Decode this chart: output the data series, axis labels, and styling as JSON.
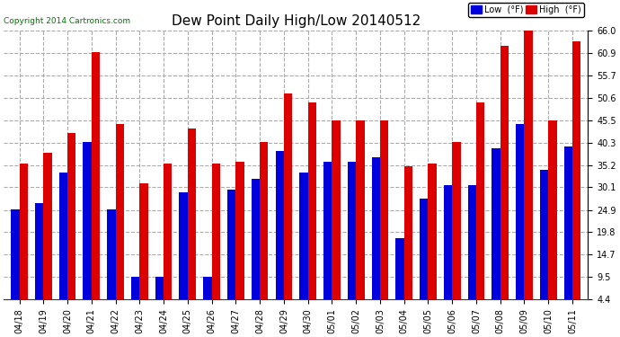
{
  "title": "Dew Point Daily High/Low 20140512",
  "copyright": "Copyright 2014 Cartronics.com",
  "categories": [
    "04/18",
    "04/19",
    "04/20",
    "04/21",
    "04/22",
    "04/23",
    "04/24",
    "04/25",
    "04/26",
    "04/27",
    "04/28",
    "04/29",
    "04/30",
    "05/01",
    "05/02",
    "05/03",
    "05/04",
    "05/05",
    "05/06",
    "05/07",
    "05/08",
    "05/09",
    "05/10",
    "05/11"
  ],
  "low_values": [
    25.0,
    26.5,
    33.5,
    40.5,
    25.0,
    9.5,
    9.5,
    29.0,
    9.5,
    29.5,
    32.0,
    38.5,
    33.5,
    36.0,
    36.0,
    37.0,
    18.5,
    27.5,
    30.5,
    30.5,
    39.0,
    44.5,
    34.0,
    39.5
  ],
  "high_values": [
    35.5,
    38.0,
    42.5,
    61.0,
    44.5,
    31.0,
    35.5,
    43.5,
    35.5,
    36.0,
    40.5,
    51.5,
    49.5,
    45.5,
    45.5,
    45.5,
    35.0,
    35.5,
    40.5,
    49.5,
    62.5,
    66.0,
    45.5,
    63.5
  ],
  "low_color": "#0000dd",
  "high_color": "#dd0000",
  "ylim_min": 4.4,
  "ylim_max": 66.0,
  "yticks": [
    4.4,
    9.5,
    14.7,
    19.8,
    24.9,
    30.1,
    35.2,
    40.3,
    45.5,
    50.6,
    55.7,
    60.9,
    66.0
  ],
  "bg_color": "#ffffff",
  "plot_bg_color": "#ffffff",
  "grid_color": "#aaaaaa",
  "legend_low_label": "Low  (°F)",
  "legend_high_label": "High  (°F)",
  "title_fontsize": 11,
  "tick_fontsize": 7,
  "copyright_color": "#007700"
}
